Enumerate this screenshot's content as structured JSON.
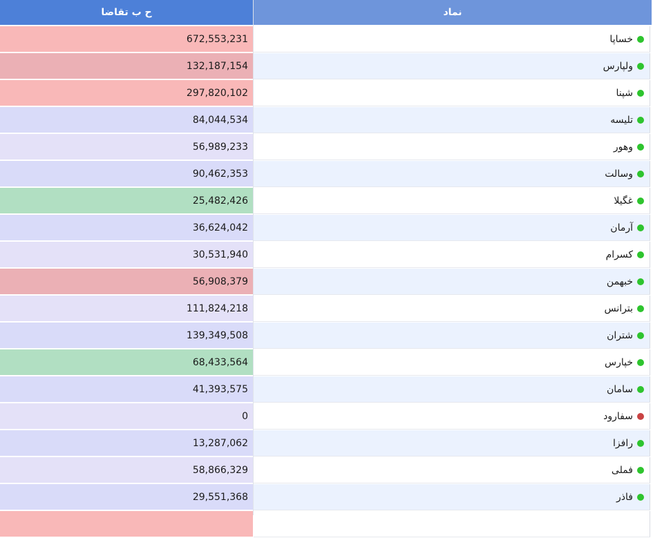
{
  "headers": {
    "value_col": "ح ب تقاضا",
    "symbol_col": "نماد"
  },
  "colors": {
    "red_strong": "#f9b8b8",
    "red_medium": "#ebb0b5",
    "green": "#b1dfc2",
    "blue_medium": "#d9dbf9",
    "blue_light": "#e4e1f8",
    "row_white": "#ffffff",
    "row_alt": "#ebf2fe",
    "status_green": "#2ec42e",
    "status_red": "#c94343"
  },
  "rows": [
    {
      "symbol": "خساپا",
      "value": "672,553,231",
      "status": "green",
      "shade": "red_strong"
    },
    {
      "symbol": "ولپارس",
      "value": "132,187,154",
      "status": "green",
      "shade": "red_medium"
    },
    {
      "symbol": "شپنا",
      "value": "297,820,102",
      "status": "green",
      "shade": "red_strong"
    },
    {
      "symbol": "تلیسه",
      "value": "84,044,534",
      "status": "green",
      "shade": "blue_medium"
    },
    {
      "symbol": "وهور",
      "value": "56,989,233",
      "status": "green",
      "shade": "blue_light"
    },
    {
      "symbol": "وسالت",
      "value": "90,462,353",
      "status": "green",
      "shade": "blue_medium"
    },
    {
      "symbol": "غگیلا",
      "value": "25,482,426",
      "status": "green",
      "shade": "green"
    },
    {
      "symbol": "آرمان",
      "value": "36,624,042",
      "status": "green",
      "shade": "blue_medium"
    },
    {
      "symbol": "کسرام",
      "value": "30,531,940",
      "status": "green",
      "shade": "blue_light"
    },
    {
      "symbol": "خبهمن",
      "value": "56,908,379",
      "status": "green",
      "shade": "red_medium"
    },
    {
      "symbol": "بترانس",
      "value": "111,824,218",
      "status": "green",
      "shade": "blue_light"
    },
    {
      "symbol": "شتران",
      "value": "139,349,508",
      "status": "green",
      "shade": "blue_medium"
    },
    {
      "symbol": "خپارس",
      "value": "68,433,564",
      "status": "green",
      "shade": "green"
    },
    {
      "symbol": "سامان",
      "value": "41,393,575",
      "status": "green",
      "shade": "blue_medium"
    },
    {
      "symbol": "سفارود",
      "value": "0",
      "status": "red",
      "shade": "blue_light"
    },
    {
      "symbol": "رافزا",
      "value": "13,287,062",
      "status": "green",
      "shade": "blue_medium"
    },
    {
      "symbol": "فملی",
      "value": "58,866,329",
      "status": "green",
      "shade": "blue_light"
    },
    {
      "symbol": "فاذر",
      "value": "29,551,368",
      "status": "green",
      "shade": "blue_medium"
    },
    {
      "symbol": "",
      "value": "",
      "status": "",
      "shade": "red_strong"
    }
  ]
}
